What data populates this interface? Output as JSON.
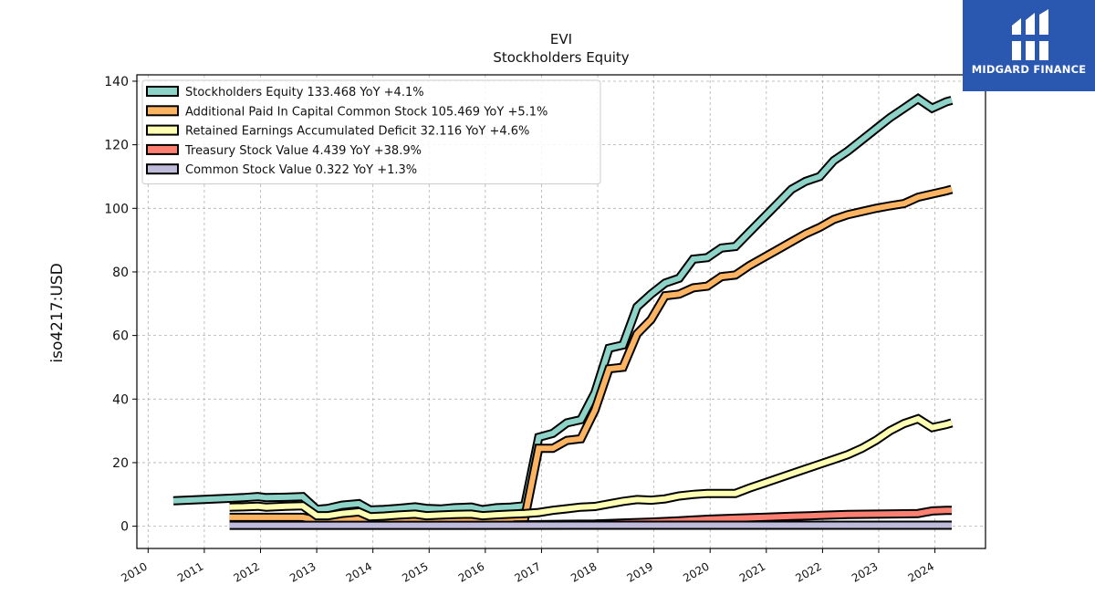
{
  "title": "EVI",
  "subtitle": "Stockholders  Equity",
  "brand": {
    "name": "MIDGARD FINANCE",
    "color": "#2a57b0"
  },
  "chart_data": {
    "type": "line",
    "ylabel": "iso4217:USD",
    "ylim": [
      -7,
      142
    ],
    "xlim": [
      2009.8,
      2024.9
    ],
    "yticks": [
      0,
      20,
      40,
      60,
      80,
      100,
      120,
      140
    ],
    "xticks": [
      "2010",
      "2011",
      "2012",
      "2013",
      "2014",
      "2015",
      "2016",
      "2017",
      "2018",
      "2019",
      "2020",
      "2021",
      "2022",
      "2023",
      "2024"
    ],
    "grid": true,
    "legend_position": "top-left",
    "series": [
      {
        "name": "Stockholders Equity",
        "legend": "Stockholders Equity  133.468 YoY +4.1%",
        "color": "#8dd3c7",
        "points": [
          [
            2010.45,
            8
          ],
          [
            2011.45,
            8.8
          ],
          [
            2011.7,
            9
          ],
          [
            2011.95,
            9.3
          ],
          [
            2012.1,
            9
          ],
          [
            2012.45,
            9.1
          ],
          [
            2012.75,
            9.3
          ],
          [
            2013.0,
            5.3
          ],
          [
            2013.2,
            5.6
          ],
          [
            2013.45,
            6.6
          ],
          [
            2013.75,
            7.1
          ],
          [
            2013.95,
            5.1
          ],
          [
            2014.2,
            5.3
          ],
          [
            2014.45,
            5.6
          ],
          [
            2014.75,
            6.1
          ],
          [
            2014.95,
            5.6
          ],
          [
            2015.2,
            5.4
          ],
          [
            2015.45,
            5.8
          ],
          [
            2015.75,
            6.0
          ],
          [
            2015.95,
            5.2
          ],
          [
            2016.2,
            5.8
          ],
          [
            2016.45,
            6.0
          ],
          [
            2016.7,
            6.4
          ],
          [
            2016.95,
            28
          ],
          [
            2017.2,
            29.2
          ],
          [
            2017.45,
            32.5
          ],
          [
            2017.7,
            33.5
          ],
          [
            2017.95,
            42
          ],
          [
            2018.2,
            56
          ],
          [
            2018.45,
            57
          ],
          [
            2018.7,
            69
          ],
          [
            2018.95,
            73
          ],
          [
            2019.2,
            76.5
          ],
          [
            2019.45,
            78
          ],
          [
            2019.7,
            84
          ],
          [
            2019.95,
            84.5
          ],
          [
            2020.2,
            87.5
          ],
          [
            2020.45,
            88
          ],
          [
            2020.7,
            92.5
          ],
          [
            2020.95,
            97
          ],
          [
            2021.2,
            101.5
          ],
          [
            2021.45,
            106
          ],
          [
            2021.7,
            108.5
          ],
          [
            2021.95,
            110
          ],
          [
            2022.2,
            115
          ],
          [
            2022.45,
            118
          ],
          [
            2022.7,
            121.5
          ],
          [
            2022.95,
            125
          ],
          [
            2023.2,
            128.5
          ],
          [
            2023.45,
            131.5
          ],
          [
            2023.7,
            134.5
          ],
          [
            2023.95,
            131.5
          ],
          [
            2024.2,
            133.5
          ],
          [
            2024.3,
            134
          ]
        ]
      },
      {
        "name": "Additional Paid In Capital Common Stock",
        "legend": "Additional Paid In Capital Common Stock  105.469 YoY +5.1%",
        "color": "#fdb462",
        "points": [
          [
            2011.45,
            2.8
          ],
          [
            2012.75,
            2.8
          ],
          [
            2013.0,
            1.8
          ],
          [
            2013.45,
            2.0
          ],
          [
            2013.75,
            2.3
          ],
          [
            2014.2,
            2.2
          ],
          [
            2015.2,
            2.2
          ],
          [
            2016.45,
            2.3
          ],
          [
            2016.7,
            2.5
          ],
          [
            2016.95,
            24.5
          ],
          [
            2017.2,
            24.5
          ],
          [
            2017.45,
            27
          ],
          [
            2017.7,
            27.5
          ],
          [
            2017.95,
            36.5
          ],
          [
            2018.2,
            49.5
          ],
          [
            2018.45,
            50
          ],
          [
            2018.7,
            60.5
          ],
          [
            2018.95,
            65
          ],
          [
            2019.2,
            72.5
          ],
          [
            2019.45,
            73
          ],
          [
            2019.7,
            75
          ],
          [
            2019.95,
            75.5
          ],
          [
            2020.2,
            78.5
          ],
          [
            2020.45,
            79
          ],
          [
            2020.7,
            82
          ],
          [
            2020.95,
            84.5
          ],
          [
            2021.2,
            87
          ],
          [
            2021.45,
            89.5
          ],
          [
            2021.7,
            92
          ],
          [
            2021.95,
            94
          ],
          [
            2022.2,
            96.5
          ],
          [
            2022.45,
            98
          ],
          [
            2022.7,
            99
          ],
          [
            2022.95,
            100
          ],
          [
            2023.2,
            100.8
          ],
          [
            2023.45,
            101.5
          ],
          [
            2023.7,
            103.5
          ],
          [
            2023.95,
            104.5
          ],
          [
            2024.2,
            105.5
          ],
          [
            2024.3,
            106
          ]
        ]
      },
      {
        "name": "Retained Earnings Accumulated Deficit",
        "legend": "Retained Earnings Accumulated Deficit  32.116 YoY +4.6%",
        "color": "#ffffb3",
        "points": [
          [
            2011.45,
            6
          ],
          [
            2011.7,
            6.1
          ],
          [
            2011.95,
            6.3
          ],
          [
            2012.1,
            6
          ],
          [
            2012.45,
            6.3
          ],
          [
            2012.75,
            6.4
          ],
          [
            2013.0,
            3.3
          ],
          [
            2013.2,
            3.3
          ],
          [
            2013.45,
            4
          ],
          [
            2013.75,
            4.5
          ],
          [
            2013.95,
            3
          ],
          [
            2014.2,
            3.2
          ],
          [
            2014.45,
            3.5
          ],
          [
            2014.75,
            3.8
          ],
          [
            2014.95,
            3.3
          ],
          [
            2015.2,
            3.5
          ],
          [
            2015.45,
            3.7
          ],
          [
            2015.75,
            3.8
          ],
          [
            2015.95,
            3.3
          ],
          [
            2016.2,
            3.6
          ],
          [
            2016.45,
            3.8
          ],
          [
            2016.7,
            4
          ],
          [
            2016.95,
            4.3
          ],
          [
            2017.2,
            5
          ],
          [
            2017.45,
            5.5
          ],
          [
            2017.7,
            6
          ],
          [
            2017.95,
            6.2
          ],
          [
            2018.2,
            7
          ],
          [
            2018.45,
            7.8
          ],
          [
            2018.7,
            8.4
          ],
          [
            2018.95,
            8.2
          ],
          [
            2019.2,
            8.6
          ],
          [
            2019.45,
            9.5
          ],
          [
            2019.7,
            10
          ],
          [
            2019.95,
            10.3
          ],
          [
            2020.45,
            10.3
          ],
          [
            2020.7,
            12
          ],
          [
            2020.95,
            13.5
          ],
          [
            2021.2,
            15
          ],
          [
            2021.45,
            16.5
          ],
          [
            2021.7,
            18
          ],
          [
            2021.95,
            19.5
          ],
          [
            2022.2,
            21
          ],
          [
            2022.45,
            22.5
          ],
          [
            2022.7,
            24.5
          ],
          [
            2022.95,
            27
          ],
          [
            2023.2,
            30
          ],
          [
            2023.45,
            32.3
          ],
          [
            2023.7,
            33.8
          ],
          [
            2023.95,
            31
          ],
          [
            2024.2,
            32
          ],
          [
            2024.3,
            32.5
          ]
        ]
      },
      {
        "name": "Treasury Stock Value",
        "legend": "Treasury Stock Value  4.439 YoY +38.9%",
        "color": "#fb8072",
        "points": [
          [
            2016.5,
            0.4
          ],
          [
            2016.95,
            0.5
          ],
          [
            2017.45,
            0.6
          ],
          [
            2017.95,
            0.7
          ],
          [
            2018.45,
            1.0
          ],
          [
            2018.95,
            1.3
          ],
          [
            2019.45,
            1.7
          ],
          [
            2019.95,
            2.2
          ],
          [
            2020.45,
            2.5
          ],
          [
            2020.95,
            2.8
          ],
          [
            2021.45,
            3.1
          ],
          [
            2021.95,
            3.4
          ],
          [
            2022.45,
            3.7
          ],
          [
            2022.95,
            3.8
          ],
          [
            2023.45,
            3.9
          ],
          [
            2023.7,
            4.0
          ],
          [
            2023.95,
            4.8
          ],
          [
            2024.2,
            5.0
          ],
          [
            2024.3,
            5.0
          ]
        ]
      },
      {
        "name": "Common Stock Value",
        "legend": "Common Stock Value  0.322 YoY +1.3%",
        "color": "#bebada",
        "points": [
          [
            2011.45,
            0.3
          ],
          [
            2024.3,
            0.32
          ]
        ]
      }
    ]
  }
}
